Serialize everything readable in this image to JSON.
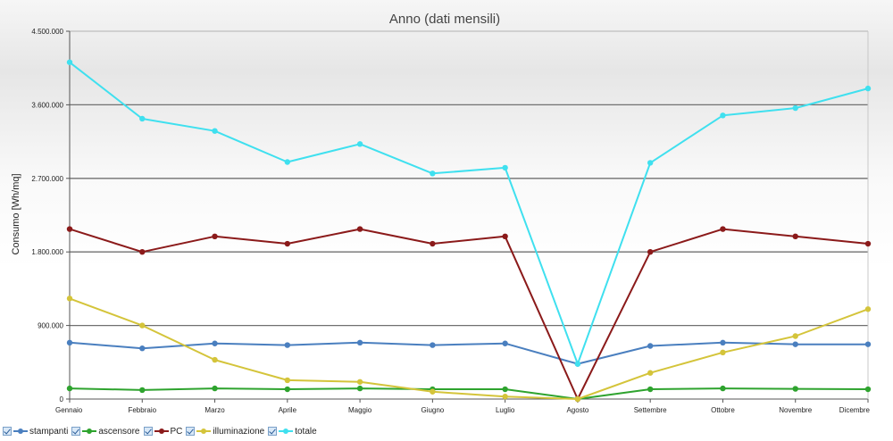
{
  "chart_data": {
    "type": "line",
    "title": "Anno (dati mensili)",
    "ylabel": "Consumo [Wh/mq]",
    "xlabel": "",
    "ylim": [
      0,
      4500000
    ],
    "yticks": [
      0,
      900000,
      1800000,
      2700000,
      3600000,
      4500000
    ],
    "ytick_labels": [
      "0",
      "900.000",
      "1.800.000",
      "2.700.000",
      "3.600.000",
      "4.500.000"
    ],
    "grid": true,
    "legend_position": "bottom-left",
    "categories": [
      "Gennaio",
      "Febbraio",
      "Marzo",
      "Aprile",
      "Maggio",
      "Giugno",
      "Luglio",
      "Agosto",
      "Settembre",
      "Ottobre",
      "Novembre",
      "Dicembre"
    ],
    "series": [
      {
        "name": "stampanti",
        "color": "#4a7fbf",
        "values": [
          690000,
          620000,
          680000,
          660000,
          690000,
          660000,
          680000,
          430000,
          650000,
          690000,
          670000,
          670000
        ]
      },
      {
        "name": "ascensore",
        "color": "#2ea32e",
        "values": [
          130000,
          110000,
          130000,
          120000,
          130000,
          120000,
          120000,
          0,
          120000,
          130000,
          125000,
          120000
        ]
      },
      {
        "name": "PC",
        "color": "#8b1a1a",
        "values": [
          2080000,
          1800000,
          1990000,
          1900000,
          2080000,
          1900000,
          1990000,
          0,
          1800000,
          2080000,
          1990000,
          1900000
        ]
      },
      {
        "name": "illuminazione",
        "color": "#d4c43a",
        "values": [
          1230000,
          900000,
          480000,
          230000,
          210000,
          90000,
          30000,
          0,
          320000,
          570000,
          770000,
          1100000
        ]
      },
      {
        "name": "totale",
        "color": "#3fe0ef",
        "values": [
          4120000,
          3430000,
          3280000,
          2900000,
          3120000,
          2760000,
          2830000,
          430000,
          2890000,
          3470000,
          3560000,
          3800000
        ]
      }
    ]
  }
}
